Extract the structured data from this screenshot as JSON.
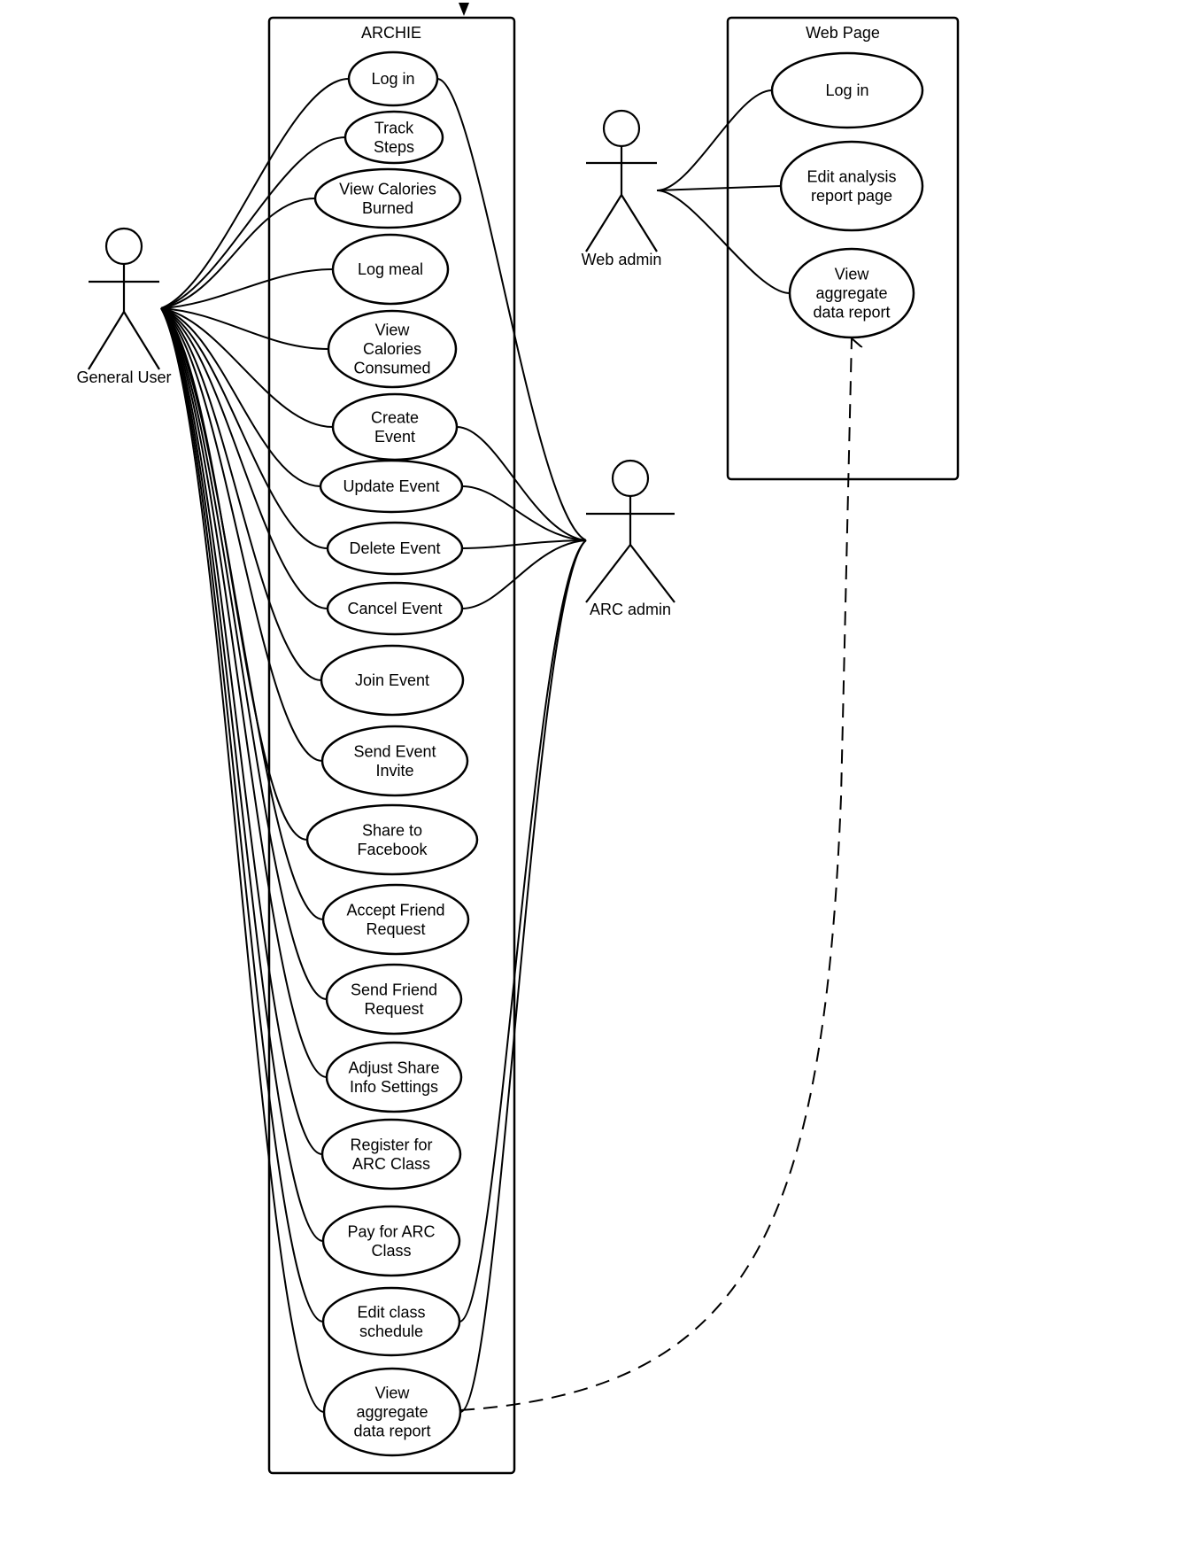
{
  "boundaries": {
    "archie": {
      "title": "ARCHIE"
    },
    "webpage": {
      "title": "Web Page"
    }
  },
  "actors": {
    "general_user": {
      "label": "General User"
    },
    "web_admin": {
      "label": "Web admin"
    },
    "arc_admin": {
      "label": "ARC admin"
    }
  },
  "archie_use_cases": [
    {
      "lines": [
        "Log in"
      ]
    },
    {
      "lines": [
        "Track",
        "Steps"
      ]
    },
    {
      "lines": [
        "View Calories",
        "Burned"
      ]
    },
    {
      "lines": [
        "Log meal"
      ]
    },
    {
      "lines": [
        "View",
        "Calories",
        "Consumed"
      ]
    },
    {
      "lines": [
        "Create",
        "Event"
      ]
    },
    {
      "lines": [
        "Update Event"
      ]
    },
    {
      "lines": [
        "Delete Event"
      ]
    },
    {
      "lines": [
        "Cancel Event"
      ]
    },
    {
      "lines": [
        "Join Event"
      ]
    },
    {
      "lines": [
        "Send Event",
        "Invite"
      ]
    },
    {
      "lines": [
        "Share to",
        "Facebook"
      ]
    },
    {
      "lines": [
        "Accept Friend",
        "Request"
      ]
    },
    {
      "lines": [
        "Send Friend",
        "Request"
      ]
    },
    {
      "lines": [
        "Adjust Share",
        "Info Settings"
      ]
    },
    {
      "lines": [
        "Register for",
        "ARC Class"
      ]
    },
    {
      "lines": [
        "Pay for ARC",
        "Class"
      ]
    },
    {
      "lines": [
        "Edit class",
        "schedule"
      ]
    },
    {
      "lines": [
        "View",
        "aggregate",
        "data report"
      ]
    }
  ],
  "webpage_use_cases": [
    {
      "lines": [
        "Log in"
      ]
    },
    {
      "lines": [
        "Edit analysis",
        "report page"
      ]
    },
    {
      "lines": [
        "View",
        "aggregate",
        "data report"
      ]
    }
  ],
  "associations": {
    "general_user_to": [
      0,
      1,
      2,
      3,
      4,
      5,
      6,
      7,
      8,
      9,
      10,
      11,
      12,
      13,
      14,
      15,
      16,
      17,
      18
    ],
    "arc_admin_to": [
      0,
      5,
      6,
      7,
      8,
      17,
      18
    ],
    "web_admin_to": [
      0,
      1,
      2
    ]
  },
  "dependency": {
    "from": "archie_use_case_18",
    "to": "webpage_use_case_2",
    "style": "dashed"
  }
}
